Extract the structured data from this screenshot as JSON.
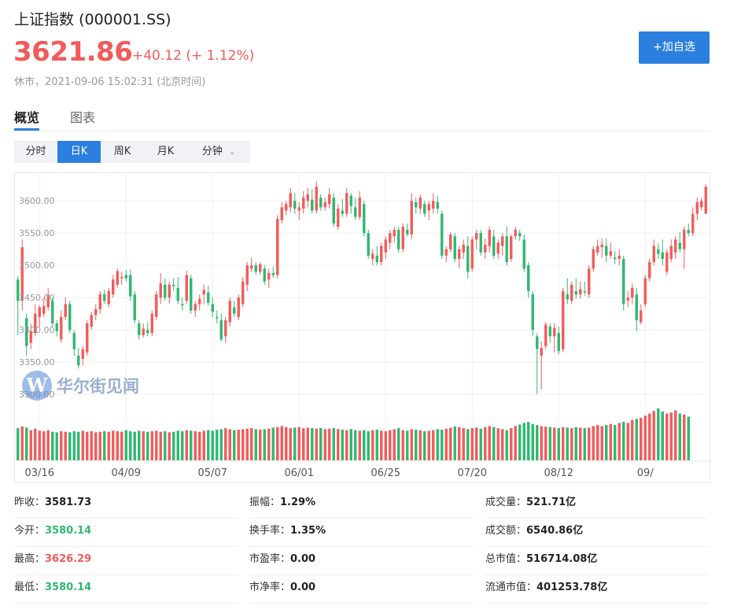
{
  "header": {
    "name": "上证指数",
    "code": "(000001.SS)",
    "price": "3621.86",
    "change": "+40.12 (+ 1.12%)",
    "status": "休市，2021-09-06 15:02:31 (北京时间)",
    "add_button": "+加自选"
  },
  "tabs": [
    {
      "label": "概览",
      "active": true
    },
    {
      "label": "图表",
      "active": false
    }
  ],
  "periods": [
    {
      "label": "分时",
      "active": false
    },
    {
      "label": "日K",
      "active": true
    },
    {
      "label": "周K",
      "active": false
    },
    {
      "label": "月K",
      "active": false
    },
    {
      "label": "分钟",
      "active": false
    }
  ],
  "watermark": "华尔街见闻",
  "colors": {
    "up": "#f25b5b",
    "down": "#2eb872",
    "accent": "#2b7fde"
  },
  "chart_data": {
    "type": "candlestick",
    "ylim": [
      3288,
      3632
    ],
    "y_ticks": [
      "3600.00",
      "3550.00",
      "3500.00",
      "3450.00",
      "3400.00",
      "3350.00",
      "3300.00"
    ],
    "y_tick_values": [
      3600,
      3550,
      3500,
      3450,
      3400,
      3350,
      3300
    ],
    "x_labels": [
      "03/16",
      "04/09",
      "05/07",
      "06/01",
      "06/25",
      "07/20",
      "08/12",
      "09/"
    ],
    "x_label_index": [
      5,
      25,
      45,
      65,
      85,
      105,
      125,
      145
    ],
    "ohlc": [
      [
        3478,
        3483,
        3392,
        3445
      ],
      [
        3445,
        3540,
        3430,
        3528
      ],
      [
        3418,
        3425,
        3360,
        3375
      ],
      [
        3380,
        3410,
        3370,
        3398
      ],
      [
        3395,
        3440,
        3390,
        3425
      ],
      [
        3420,
        3438,
        3405,
        3435
      ],
      [
        3425,
        3450,
        3420,
        3437
      ],
      [
        3435,
        3465,
        3430,
        3454
      ],
      [
        3445,
        3450,
        3405,
        3410
      ],
      [
        3410,
        3415,
        3390,
        3398
      ],
      [
        3385,
        3430,
        3380,
        3420
      ],
      [
        3420,
        3450,
        3415,
        3440
      ],
      [
        3440,
        3445,
        3395,
        3400
      ],
      [
        3395,
        3400,
        3360,
        3370
      ],
      [
        3360,
        3372,
        3340,
        3345
      ],
      [
        3355,
        3375,
        3345,
        3370
      ],
      [
        3365,
        3415,
        3360,
        3410
      ],
      [
        3405,
        3428,
        3400,
        3423
      ],
      [
        3423,
        3440,
        3415,
        3432
      ],
      [
        3432,
        3460,
        3425,
        3455
      ],
      [
        3455,
        3462,
        3440,
        3445
      ],
      [
        3440,
        3465,
        3435,
        3460
      ],
      [
        3455,
        3485,
        3450,
        3478
      ],
      [
        3470,
        3495,
        3465,
        3491
      ],
      [
        3480,
        3490,
        3470,
        3482
      ],
      [
        3485,
        3493,
        3475,
        3480
      ],
      [
        3485,
        3493,
        3445,
        3452
      ],
      [
        3455,
        3460,
        3410,
        3415
      ],
      [
        3410,
        3415,
        3385,
        3392
      ],
      [
        3392,
        3410,
        3388,
        3402
      ],
      [
        3400,
        3412,
        3390,
        3395
      ],
      [
        3395,
        3430,
        3390,
        3425
      ],
      [
        3420,
        3460,
        3415,
        3455
      ],
      [
        3450,
        3488,
        3440,
        3472
      ],
      [
        3470,
        3480,
        3445,
        3450
      ],
      [
        3450,
        3475,
        3440,
        3470
      ],
      [
        3470,
        3480,
        3460,
        3468
      ],
      [
        3465,
        3482,
        3440,
        3445
      ],
      [
        3440,
        3450,
        3430,
        3438
      ],
      [
        3445,
        3492,
        3440,
        3485
      ],
      [
        3480,
        3485,
        3425,
        3430
      ],
      [
        3430,
        3445,
        3420,
        3440
      ],
      [
        3440,
        3455,
        3430,
        3448
      ],
      [
        3455,
        3470,
        3440,
        3462
      ],
      [
        3458,
        3468,
        3438,
        3442
      ],
      [
        3440,
        3450,
        3420,
        3428
      ],
      [
        3420,
        3430,
        3410,
        3418
      ],
      [
        3415,
        3425,
        3382,
        3385
      ],
      [
        3390,
        3420,
        3380,
        3415
      ],
      [
        3412,
        3450,
        3405,
        3445
      ],
      [
        3435,
        3445,
        3420,
        3425
      ],
      [
        3420,
        3455,
        3415,
        3450
      ],
      [
        3440,
        3482,
        3435,
        3475
      ],
      [
        3470,
        3505,
        3460,
        3500
      ],
      [
        3495,
        3512,
        3490,
        3500
      ],
      [
        3500,
        3505,
        3485,
        3490
      ],
      [
        3490,
        3505,
        3485,
        3502
      ],
      [
        3495,
        3500,
        3470,
        3475
      ],
      [
        3478,
        3495,
        3465,
        3488
      ],
      [
        3488,
        3498,
        3480,
        3485
      ],
      [
        3485,
        3578,
        3480,
        3572
      ],
      [
        3570,
        3598,
        3565,
        3590
      ],
      [
        3585,
        3600,
        3578,
        3595
      ],
      [
        3590,
        3620,
        3582,
        3612
      ],
      [
        3600,
        3612,
        3580,
        3588
      ],
      [
        3585,
        3598,
        3570,
        3590
      ],
      [
        3588,
        3615,
        3580,
        3605
      ],
      [
        3600,
        3620,
        3590,
        3610
      ],
      [
        3602,
        3618,
        3580,
        3585
      ],
      [
        3585,
        3630,
        3580,
        3622
      ],
      [
        3605,
        3610,
        3585,
        3590
      ],
      [
        3590,
        3605,
        3585,
        3598
      ],
      [
        3595,
        3620,
        3588,
        3610
      ],
      [
        3605,
        3612,
        3560,
        3565
      ],
      [
        3560,
        3595,
        3555,
        3588
      ],
      [
        3585,
        3603,
        3575,
        3580
      ],
      [
        3580,
        3620,
        3575,
        3612
      ],
      [
        3608,
        3612,
        3580,
        3592
      ],
      [
        3590,
        3605,
        3570,
        3575
      ],
      [
        3575,
        3615,
        3570,
        3605
      ],
      [
        3595,
        3600,
        3545,
        3550
      ],
      [
        3550,
        3555,
        3510,
        3515
      ],
      [
        3510,
        3525,
        3500,
        3518
      ],
      [
        3515,
        3530,
        3500,
        3505
      ],
      [
        3505,
        3535,
        3500,
        3530
      ],
      [
        3520,
        3545,
        3510,
        3540
      ],
      [
        3535,
        3555,
        3525,
        3550
      ],
      [
        3545,
        3560,
        3535,
        3555
      ],
      [
        3555,
        3560,
        3520,
        3525
      ],
      [
        3525,
        3565,
        3520,
        3560
      ],
      [
        3555,
        3565,
        3545,
        3548
      ],
      [
        3548,
        3612,
        3540,
        3600
      ],
      [
        3598,
        3605,
        3580,
        3590
      ],
      [
        3588,
        3610,
        3580,
        3605
      ],
      [
        3595,
        3600,
        3575,
        3580
      ],
      [
        3585,
        3600,
        3570,
        3595
      ],
      [
        3588,
        3612,
        3580,
        3600
      ],
      [
        3598,
        3608,
        3580,
        3588
      ],
      [
        3580,
        3585,
        3510,
        3515
      ],
      [
        3515,
        3530,
        3505,
        3525
      ],
      [
        3525,
        3552,
        3520,
        3548
      ],
      [
        3545,
        3550,
        3505,
        3510
      ],
      [
        3510,
        3530,
        3495,
        3525
      ],
      [
        3520,
        3540,
        3510,
        3532
      ],
      [
        3530,
        3545,
        3480,
        3490
      ],
      [
        3495,
        3545,
        3490,
        3540
      ],
      [
        3540,
        3555,
        3525,
        3550
      ],
      [
        3550,
        3555,
        3515,
        3520
      ],
      [
        3520,
        3542,
        3510,
        3532
      ],
      [
        3530,
        3560,
        3520,
        3555
      ],
      [
        3545,
        3555,
        3510,
        3515
      ],
      [
        3518,
        3540,
        3510,
        3535
      ],
      [
        3530,
        3550,
        3515,
        3545
      ],
      [
        3545,
        3560,
        3500,
        3505
      ],
      [
        3510,
        3548,
        3505,
        3545
      ],
      [
        3545,
        3560,
        3540,
        3555
      ],
      [
        3550,
        3555,
        3538,
        3545
      ],
      [
        3540,
        3548,
        3490,
        3495
      ],
      [
        3500,
        3505,
        3450,
        3460
      ],
      [
        3455,
        3460,
        3390,
        3400
      ],
      [
        3390,
        3395,
        3300,
        3370
      ],
      [
        3360,
        3382,
        3308,
        3372
      ],
      [
        3375,
        3412,
        3370,
        3408
      ],
      [
        3405,
        3410,
        3380,
        3390
      ],
      [
        3390,
        3410,
        3365,
        3403
      ],
      [
        3395,
        3405,
        3362,
        3367
      ],
      [
        3370,
        3465,
        3365,
        3460
      ],
      [
        3455,
        3480,
        3440,
        3447
      ],
      [
        3445,
        3475,
        3440,
        3470
      ],
      [
        3460,
        3480,
        3448,
        3455
      ],
      [
        3455,
        3475,
        3448,
        3463
      ],
      [
        3460,
        3475,
        3453,
        3458
      ],
      [
        3455,
        3500,
        3450,
        3495
      ],
      [
        3495,
        3530,
        3490,
        3525
      ],
      [
        3520,
        3540,
        3515,
        3530
      ],
      [
        3528,
        3542,
        3512,
        3532
      ],
      [
        3530,
        3542,
        3505,
        3515
      ],
      [
        3515,
        3535,
        3510,
        3522
      ],
      [
        3512,
        3522,
        3502,
        3510
      ],
      [
        3510,
        3525,
        3500,
        3515
      ],
      [
        3510,
        3515,
        3430,
        3440
      ],
      [
        3445,
        3460,
        3435,
        3450
      ],
      [
        3450,
        3472,
        3440,
        3465
      ],
      [
        3455,
        3465,
        3398,
        3415
      ],
      [
        3412,
        3440,
        3408,
        3430
      ],
      [
        3440,
        3485,
        3435,
        3480
      ],
      [
        3480,
        3510,
        3475,
        3505
      ],
      [
        3505,
        3540,
        3500,
        3530
      ],
      [
        3525,
        3535,
        3510,
        3518
      ],
      [
        3520,
        3540,
        3500,
        3510
      ],
      [
        3490,
        3525,
        3485,
        3520
      ],
      [
        3510,
        3540,
        3505,
        3530
      ],
      [
        3520,
        3545,
        3510,
        3540
      ],
      [
        3535,
        3552,
        3520,
        3525
      ],
      [
        3525,
        3560,
        3495,
        3555
      ],
      [
        3555,
        3565,
        3545,
        3550
      ],
      [
        3550,
        3590,
        3545,
        3580
      ],
      [
        3580,
        3605,
        3570,
        3598
      ],
      [
        3590,
        3605,
        3585,
        3600
      ],
      [
        3580,
        3626,
        3580,
        3622
      ]
    ],
    "volume": [
      0.62,
      0.65,
      0.63,
      0.58,
      0.61,
      0.57,
      0.56,
      0.58,
      0.55,
      0.54,
      0.56,
      0.55,
      0.54,
      0.56,
      0.55,
      0.57,
      0.55,
      0.56,
      0.54,
      0.55,
      0.56,
      0.55,
      0.57,
      0.56,
      0.55,
      0.58,
      0.56,
      0.55,
      0.57,
      0.56,
      0.55,
      0.56,
      0.57,
      0.55,
      0.56,
      0.54,
      0.55,
      0.57,
      0.56,
      0.58,
      0.57,
      0.56,
      0.55,
      0.57,
      0.58,
      0.57,
      0.59,
      0.6,
      0.62,
      0.6,
      0.58,
      0.59,
      0.6,
      0.61,
      0.62,
      0.6,
      0.59,
      0.6,
      0.61,
      0.63,
      0.64,
      0.66,
      0.64,
      0.62,
      0.63,
      0.64,
      0.62,
      0.63,
      0.62,
      0.61,
      0.62,
      0.6,
      0.61,
      0.62,
      0.6,
      0.59,
      0.58,
      0.6,
      0.58,
      0.57,
      0.58,
      0.56,
      0.58,
      0.59,
      0.57,
      0.56,
      0.58,
      0.6,
      0.62,
      0.58,
      0.57,
      0.6,
      0.59,
      0.58,
      0.56,
      0.57,
      0.58,
      0.6,
      0.59,
      0.61,
      0.63,
      0.65,
      0.64,
      0.62,
      0.6,
      0.62,
      0.63,
      0.61,
      0.64,
      0.66,
      0.64,
      0.62,
      0.6,
      0.58,
      0.62,
      0.66,
      0.69,
      0.72,
      0.74,
      0.7,
      0.68,
      0.66,
      0.65,
      0.64,
      0.63,
      0.62,
      0.64,
      0.63,
      0.62,
      0.64,
      0.63,
      0.62,
      0.63,
      0.66,
      0.68,
      0.66,
      0.68,
      0.7,
      0.68,
      0.72,
      0.74,
      0.72,
      0.78,
      0.8,
      0.82,
      0.86,
      0.9,
      0.95,
      1.0,
      0.94,
      0.9,
      0.92,
      0.96,
      0.9,
      0.88,
      0.84
    ]
  },
  "stats": [
    [
      {
        "label": "昨收：",
        "value": "3581.73",
        "tone": ""
      },
      {
        "label": "振幅：",
        "value": "1.29%",
        "tone": ""
      },
      {
        "label": "成交量：",
        "value": "521.71亿",
        "tone": ""
      }
    ],
    [
      {
        "label": "今开：",
        "value": "3580.14",
        "tone": "down"
      },
      {
        "label": "换手率：",
        "value": "1.35%",
        "tone": ""
      },
      {
        "label": "成交额：",
        "value": "6540.86亿",
        "tone": ""
      }
    ],
    [
      {
        "label": "最高：",
        "value": "3626.29",
        "tone": "up"
      },
      {
        "label": "市盈率：",
        "value": "0.00",
        "tone": ""
      },
      {
        "label": "总市值：",
        "value": "516714.08亿",
        "tone": ""
      }
    ],
    [
      {
        "label": "最低：",
        "value": "3580.14",
        "tone": "down"
      },
      {
        "label": "市净率：",
        "value": "0.00",
        "tone": ""
      },
      {
        "label": "流通市值：",
        "value": "401253.78亿",
        "tone": ""
      }
    ]
  ]
}
